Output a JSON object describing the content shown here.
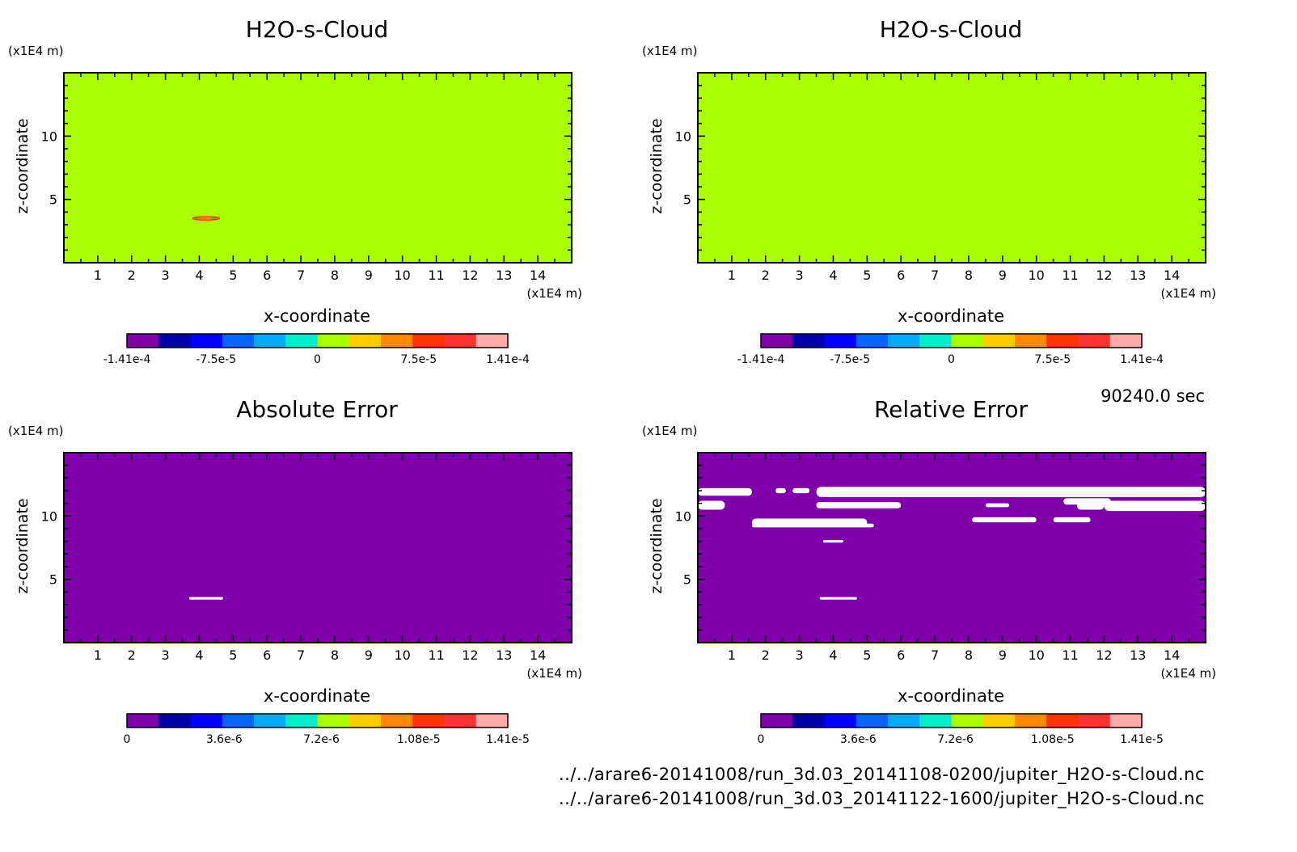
{
  "footer": {
    "time_label": "90240.0 sec",
    "files": [
      "../../arare6-20141008/run_3d.03_20141108-0200/jupiter_H2O-s-Cloud.nc",
      "../../arare6-20141008/run_3d.03_20141122-1600/jupiter_H2O-s-Cloud.nc"
    ]
  },
  "colors": {
    "levels": [
      "#7f00aa",
      "#0000aa",
      "#0000ff",
      "#0066ff",
      "#00aaff",
      "#00eecc",
      "#aaff00",
      "#ffcc00",
      "#ff8800",
      "#ff3300",
      "#ff3333",
      "#ffaaaa"
    ],
    "frame": "#000000",
    "empty": "#ffffff"
  },
  "chart_data": [
    {
      "type": "heatmap",
      "title": "H2O-s-Cloud",
      "xlabel": "x-coordinate",
      "ylabel": "z-coordinate",
      "x_unit": "(x1E4 m)",
      "y_unit": "(x1E4 m)",
      "xlim": [
        0,
        15
      ],
      "ylim": [
        0,
        15
      ],
      "x_ticks": [
        1,
        2,
        3,
        4,
        5,
        6,
        7,
        8,
        9,
        10,
        11,
        12,
        13,
        14
      ],
      "y_ticks": [
        5,
        10
      ],
      "background_value": 0,
      "features": [
        {
          "x": [
            3.8,
            4.6
          ],
          "y": [
            3.4,
            3.6
          ],
          "value": 0.0001
        }
      ],
      "colorbar": {
        "min": -0.000141,
        "max": 0.000141,
        "tick_labels": [
          "-1.41e-4",
          "-7.5e-5",
          "0",
          "7.5e-5",
          "1.41e-4"
        ],
        "tick_values": [
          -0.000141,
          -7.5e-05,
          0,
          7.5e-05,
          0.000141
        ]
      }
    },
    {
      "type": "heatmap",
      "title": "H2O-s-Cloud",
      "xlabel": "x-coordinate",
      "ylabel": "z-coordinate",
      "x_unit": "(x1E4 m)",
      "y_unit": "(x1E4 m)",
      "xlim": [
        0,
        15
      ],
      "ylim": [
        0,
        15
      ],
      "x_ticks": [
        1,
        2,
        3,
        4,
        5,
        6,
        7,
        8,
        9,
        10,
        11,
        12,
        13,
        14
      ],
      "y_ticks": [
        5,
        10
      ],
      "background_value": 0,
      "features": [],
      "colorbar": {
        "min": -0.000141,
        "max": 0.000141,
        "tick_labels": [
          "-1.41e-4",
          "-7.5e-5",
          "0",
          "7.5e-5",
          "1.41e-4"
        ],
        "tick_values": [
          -0.000141,
          -7.5e-05,
          0,
          7.5e-05,
          0.000141
        ]
      }
    },
    {
      "type": "heatmap",
      "title": "Absolute Error",
      "xlabel": "x-coordinate",
      "ylabel": "z-coordinate",
      "x_unit": "(x1E4 m)",
      "y_unit": "(x1E4 m)",
      "xlim": [
        0,
        15
      ],
      "ylim": [
        0,
        15
      ],
      "x_ticks": [
        1,
        2,
        3,
        4,
        5,
        6,
        7,
        8,
        9,
        10,
        11,
        12,
        13,
        14
      ],
      "y_ticks": [
        5,
        10
      ],
      "background_value": 0,
      "features": [
        {
          "x": [
            3.7,
            4.7
          ],
          "y": [
            3.4,
            3.6
          ],
          "value": "out_of_range"
        }
      ],
      "colorbar": {
        "min": 0,
        "max": 1.41e-05,
        "tick_labels": [
          "0",
          "3.6e-6",
          "7.2e-6",
          "1.08e-5",
          "1.41e-5"
        ],
        "tick_values": [
          0,
          3.6e-06,
          7.2e-06,
          1.08e-05,
          1.41e-05
        ]
      }
    },
    {
      "type": "heatmap",
      "title": "Relative Error",
      "xlabel": "x-coordinate",
      "ylabel": "z-coordinate",
      "x_unit": "(x1E4 m)",
      "y_unit": "(x1E4 m)",
      "xlim": [
        0,
        15
      ],
      "ylim": [
        0,
        15
      ],
      "x_ticks": [
        1,
        2,
        3,
        4,
        5,
        6,
        7,
        8,
        9,
        10,
        11,
        12,
        13,
        14
      ],
      "y_ticks": [
        5,
        10
      ],
      "background_value": 0,
      "features": [
        {
          "x": [
            0.0,
            1.6
          ],
          "y": [
            11.6,
            12.2
          ],
          "value": "out_of_range"
        },
        {
          "x": [
            2.3,
            2.6
          ],
          "y": [
            11.8,
            12.2
          ],
          "value": "out_of_range"
        },
        {
          "x": [
            2.8,
            3.3
          ],
          "y": [
            11.8,
            12.2
          ],
          "value": "out_of_range"
        },
        {
          "x": [
            3.5,
            15.0
          ],
          "y": [
            11.5,
            12.3
          ],
          "value": "out_of_range"
        },
        {
          "x": [
            0.0,
            0.8
          ],
          "y": [
            10.5,
            11.2
          ],
          "value": "out_of_range"
        },
        {
          "x": [
            3.5,
            6.0
          ],
          "y": [
            10.6,
            11.1
          ],
          "value": "out_of_range"
        },
        {
          "x": [
            8.5,
            9.2
          ],
          "y": [
            10.7,
            11.0
          ],
          "value": "out_of_range"
        },
        {
          "x": [
            10.8,
            12.2
          ],
          "y": [
            10.9,
            11.4
          ],
          "value": "out_of_range"
        },
        {
          "x": [
            11.2,
            12.0
          ],
          "y": [
            10.5,
            11.1
          ],
          "value": "out_of_range"
        },
        {
          "x": [
            12.0,
            15.0
          ],
          "y": [
            10.4,
            11.2
          ],
          "value": "out_of_range"
        },
        {
          "x": [
            1.6,
            5.0
          ],
          "y": [
            9.2,
            9.8
          ],
          "value": "out_of_range"
        },
        {
          "x": [
            1.6,
            5.2
          ],
          "y": [
            9.1,
            9.4
          ],
          "value": "out_of_range"
        },
        {
          "x": [
            8.1,
            10.0
          ],
          "y": [
            9.5,
            9.9
          ],
          "value": "out_of_range"
        },
        {
          "x": [
            10.5,
            11.6
          ],
          "y": [
            9.5,
            9.9
          ],
          "value": "out_of_range"
        },
        {
          "x": [
            3.7,
            4.3
          ],
          "y": [
            7.9,
            8.1
          ],
          "value": "out_of_range"
        },
        {
          "x": [
            3.6,
            4.7
          ],
          "y": [
            3.4,
            3.6
          ],
          "value": "out_of_range"
        }
      ],
      "colorbar": {
        "min": 0,
        "max": 1.41e-05,
        "tick_labels": [
          "0",
          "3.6e-6",
          "7.2e-6",
          "1.08e-5",
          "1.41e-5"
        ],
        "tick_values": [
          0,
          3.6e-06,
          7.2e-06,
          1.08e-05,
          1.41e-05
        ]
      }
    }
  ]
}
